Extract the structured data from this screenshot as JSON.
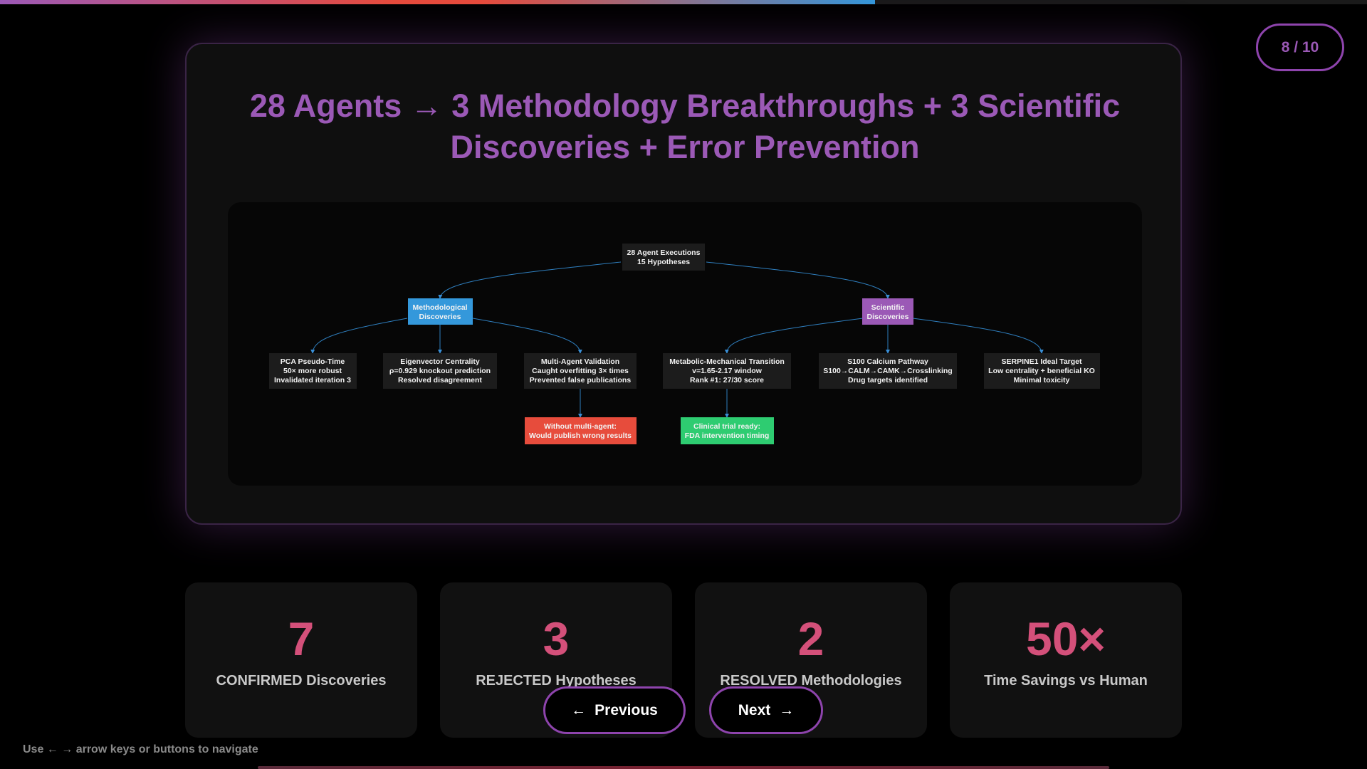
{
  "progress": {
    "fraction": 0.8,
    "color_start": "#9b59b6",
    "color_mid": "#e74c3c",
    "color_end": "#3498db"
  },
  "page_counter": "8 / 10",
  "slide": {
    "title_line1": "28 Agents → 3 Methodology Breakthroughs + 3 Scientific",
    "title_line2": "Discoveries + Error Prevention"
  },
  "diagram": {
    "root": [
      "28 Agent Executions",
      "15 Hypotheses"
    ],
    "methodological": [
      "Methodological",
      "Discoveries"
    ],
    "scientific": [
      "Scientific",
      "Discoveries"
    ],
    "pca": [
      "PCA Pseudo-Time",
      "50× more robust",
      "Invalidated iteration 3"
    ],
    "eigen": [
      "Eigenvector Centrality",
      "ρ=0.929 knockout prediction",
      "Resolved disagreement"
    ],
    "multi": [
      "Multi-Agent Validation",
      "Caught overfitting 3× times",
      "Prevented false publications"
    ],
    "metabolic": [
      "Metabolic-Mechanical Transition",
      "v=1.65-2.17 window",
      "Rank #1: 27/30 score"
    ],
    "s100": [
      "S100 Calcium Pathway",
      "S100→CALM→CAMK→Crosslinking",
      "Drug targets identified"
    ],
    "serpine": [
      "SERPINE1 Ideal Target",
      "Low centrality + beneficial KO",
      "Minimal toxicity"
    ],
    "without": [
      "Without multi-agent:",
      "Would publish wrong results"
    ],
    "clinical": [
      "Clinical trial ready:",
      "FDA intervention timing"
    ],
    "colors": {
      "methodological": "#3498db",
      "scientific": "#9b59b6",
      "error": "#e74c3c",
      "success": "#2ecc71",
      "neutral": "#1c1c1c"
    }
  },
  "stats": [
    {
      "value": "7",
      "label": "CONFIRMED Discoveries"
    },
    {
      "value": "3",
      "label": "REJECTED Hypotheses"
    },
    {
      "value": "2",
      "label": "RESOLVED Methodologies"
    },
    {
      "value": "50×",
      "label": "Time Savings vs Human"
    }
  ],
  "nav": {
    "previous_label": "Previous",
    "previous_icon": "←",
    "next_label": "Next",
    "next_icon": "→"
  },
  "hint": "Use ← → arrow keys or buttons to navigate",
  "accent_color": "#9b59b6",
  "stat_color": "#d4507a"
}
